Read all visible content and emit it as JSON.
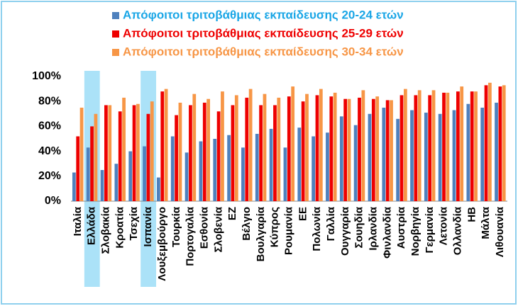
{
  "chart_data": {
    "type": "bar",
    "categories": [
      "Ιταλία",
      "Ελλάδα",
      "Σλοβακία",
      "Κροατία",
      "Τσεχία",
      "Ισπανία",
      "Λουξεμβούργο",
      "Τουρκία",
      "Πορτογαλία",
      "Εσθονία",
      "Σλοβενία",
      "ΕΖ",
      "Βέλγιο",
      "Βουλγαρία",
      "Κύπρος",
      "Ρουμανία",
      "ΕΕ",
      "Πολωνία",
      "Γαλλία",
      "Ουγγαρία",
      "Σουηδία",
      "Ιρλανδία",
      "Φινλανδία",
      "Αυστρία",
      "Νορβηγία",
      "Γερμανία",
      "Λετονία",
      "Ολλανδία",
      "ΗΒ",
      "Μάλτα",
      "Λιθουανία"
    ],
    "series": [
      {
        "name": "Απόφοιτοι τριτοβάθμιας εκπαίδευσης 20-24 ετών",
        "color": "#4f81bd",
        "legend_color": "#1aa6e6",
        "values": [
          23,
          43,
          25,
          30,
          40,
          44,
          19,
          52,
          39,
          48,
          50,
          53,
          43,
          54,
          58,
          43,
          59,
          52,
          55,
          68,
          61,
          70,
          75,
          66,
          73,
          71,
          70,
          73,
          78,
          75,
          79
        ]
      },
      {
        "name": "Απόφοιτοι τριτοβάθμιας εκπαίδευσης 25-29 ετών",
        "color": "#ee0000",
        "legend_color": "#ee0000",
        "values": [
          52,
          60,
          77,
          72,
          77,
          70,
          88,
          69,
          77,
          79,
          72,
          77,
          83,
          77,
          77,
          84,
          80,
          85,
          84,
          82,
          83,
          82,
          81,
          85,
          85,
          85,
          87,
          88,
          88,
          93,
          92
        ]
      },
      {
        "name": "Απόφοιτοι τριτοβάθμιας εκπαίδευσης 30-34 ετών",
        "color": "#f79646",
        "legend_color": "#f79646",
        "values": [
          75,
          70,
          77,
          83,
          78,
          80,
          90,
          79,
          86,
          82,
          88,
          85,
          90,
          86,
          83,
          92,
          86,
          90,
          87,
          82,
          89,
          84,
          81,
          90,
          89,
          89,
          87,
          92,
          88,
          95,
          93
        ]
      }
    ],
    "highlight": [
      1,
      5
    ],
    "highlight_color": "#8fd8f5",
    "ylim": [
      0,
      100
    ],
    "yticks": [
      {
        "value": 0,
        "label": "0%"
      },
      {
        "value": 20,
        "label": "20%"
      },
      {
        "value": 40,
        "label": "40%"
      },
      {
        "value": 60,
        "label": "60%"
      },
      {
        "value": 80,
        "label": "80%"
      },
      {
        "value": 100,
        "label": "100%"
      }
    ],
    "grid": false
  }
}
